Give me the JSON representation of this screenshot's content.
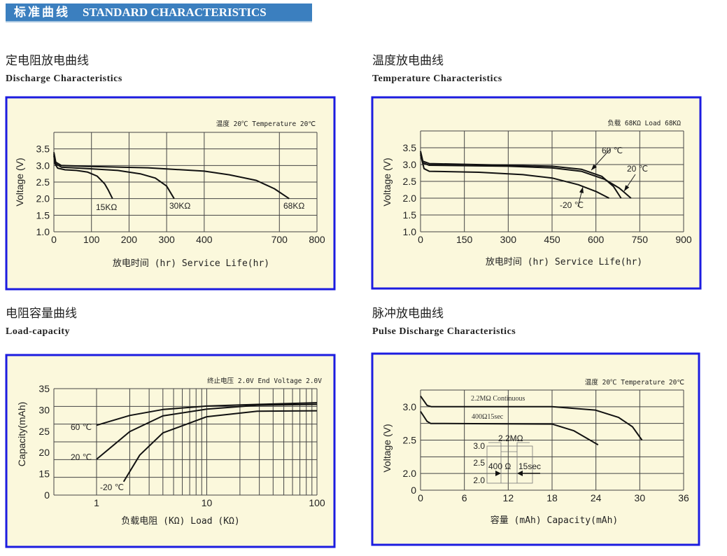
{
  "banner": {
    "cn": "标准曲线",
    "en": "STANDARD CHARACTERISTICS",
    "color": "#3b7fbf"
  },
  "sections": [
    {
      "cn": "定电阻放电曲线",
      "en": "Discharge Characteristics"
    },
    {
      "cn": "温度放电曲线",
      "en": "Temperature Characteristics"
    },
    {
      "cn": "电阻容量曲线",
      "en": "Load-capacity"
    },
    {
      "cn": "脉冲放电曲线",
      "en": "Pulse Discharge Characteristics"
    }
  ],
  "colors": {
    "panel_fill": "#fbf8dc",
    "panel_border": "#1c1ce0",
    "grid": "#444444",
    "curve": "#111111"
  },
  "chart_data": [
    {
      "type": "line",
      "note": "温度 20℃  Temperature 20℃",
      "xlabel": "放电时间 (hr) Service Life(hr)",
      "ylabel": "Voltage (V)",
      "x_ticks": [
        "0",
        "100",
        "200",
        "300",
        "400",
        "700",
        "800"
      ],
      "x_tick_values": [
        0,
        100,
        200,
        300,
        400,
        700,
        800
      ],
      "y_ticks": [
        "1.0",
        "1.5",
        "2.0",
        "2.5",
        "3.0",
        "3.5"
      ],
      "ylim": [
        1.0,
        4.0
      ],
      "grid": true,
      "series": [
        {
          "name": "15KΩ",
          "points": [
            [
              0,
              3.3
            ],
            [
              3,
              3.05
            ],
            [
              10,
              2.92
            ],
            [
              30,
              2.87
            ],
            [
              60,
              2.85
            ],
            [
              90,
              2.8
            ],
            [
              115,
              2.68
            ],
            [
              135,
              2.45
            ],
            [
              145,
              2.25
            ],
            [
              156,
              2.0
            ]
          ]
        },
        {
          "name": "30KΩ",
          "points": [
            [
              0,
              3.35
            ],
            [
              5,
              3.05
            ],
            [
              20,
              2.95
            ],
            [
              100,
              2.9
            ],
            [
              170,
              2.85
            ],
            [
              230,
              2.75
            ],
            [
              270,
              2.62
            ],
            [
              300,
              2.38
            ],
            [
              320,
              2.0
            ]
          ]
        },
        {
          "name": "68KΩ",
          "points": [
            [
              0,
              3.4
            ],
            [
              5,
              3.1
            ],
            [
              20,
              3.0
            ],
            [
              100,
              2.97
            ],
            [
              250,
              2.93
            ],
            [
              400,
              2.83
            ],
            [
              500,
              2.72
            ],
            [
              608,
              2.55
            ],
            [
              680,
              2.3
            ],
            [
              726,
              2.0
            ]
          ]
        }
      ]
    },
    {
      "type": "line",
      "note": "负载 68KΩ  Load 68KΩ",
      "xlabel": "放电时间 (hr) Service Life(hr)",
      "ylabel": "Voltage (V)",
      "x_ticks": [
        "0",
        "150",
        "300",
        "450",
        "600",
        "750",
        "900"
      ],
      "x_tick_values": [
        0,
        150,
        300,
        450,
        600,
        750,
        900
      ],
      "y_ticks": [
        "1.0",
        "1.5",
        "2.0",
        "2.5",
        "3.0",
        "3.5"
      ],
      "ylim": [
        1.0,
        4.0
      ],
      "grid": true,
      "series": [
        {
          "name": "60 ℃",
          "points": [
            [
              0,
              3.4
            ],
            [
              8,
              3.1
            ],
            [
              30,
              3.03
            ],
            [
              300,
              2.98
            ],
            [
              450,
              2.95
            ],
            [
              550,
              2.86
            ],
            [
              620,
              2.65
            ],
            [
              660,
              2.35
            ],
            [
              686,
              2.0
            ]
          ]
        },
        {
          "name": "20 ℃",
          "points": [
            [
              0,
              3.35
            ],
            [
              8,
              3.05
            ],
            [
              30,
              2.98
            ],
            [
              300,
              2.95
            ],
            [
              450,
              2.9
            ],
            [
              550,
              2.8
            ],
            [
              630,
              2.56
            ],
            [
              680,
              2.3
            ],
            [
              720,
              2.0
            ]
          ]
        },
        {
          "name": "-20 ℃",
          "points": [
            [
              0,
              3.3
            ],
            [
              12,
              2.88
            ],
            [
              30,
              2.8
            ],
            [
              200,
              2.77
            ],
            [
              350,
              2.7
            ],
            [
              450,
              2.6
            ],
            [
              540,
              2.4
            ],
            [
              600,
              2.2
            ],
            [
              645,
              2.0
            ]
          ]
        }
      ]
    },
    {
      "type": "line",
      "note": "终止电压 2.0V End Voltage 2.0V",
      "xlabel": "负载电阻 (KΩ) Load (KΩ)",
      "ylabel": "Capacity(mAh)",
      "x_scale": "log",
      "x_ticks": [
        "1",
        "10",
        "100"
      ],
      "x_tick_values": [
        1,
        10,
        100
      ],
      "y_ticks": [
        "0",
        "15",
        "20",
        "25",
        "30",
        "35"
      ],
      "y_tick_values": [
        0,
        15,
        20,
        25,
        30,
        35
      ],
      "grid": true,
      "series": [
        {
          "name": "60 ℃",
          "points": [
            [
              1,
              26.4
            ],
            [
              2,
              28.7
            ],
            [
              4,
              30.1
            ],
            [
              10,
              30.9
            ],
            [
              28.7,
              31.3
            ],
            [
              100,
              31.7
            ]
          ]
        },
        {
          "name": "20 ℃",
          "points": [
            [
              1,
              18.4
            ],
            [
              2,
              24.9
            ],
            [
              4,
              28.6
            ],
            [
              10,
              30.2
            ],
            [
              28.7,
              31.1
            ],
            [
              100,
              31.3
            ]
          ]
        },
        {
          "name": "-20 ℃",
          "points": [
            [
              1.76,
              9.4
            ],
            [
              2.47,
              19.4
            ],
            [
              4,
              24.6
            ],
            [
              10,
              28.4
            ],
            [
              28.7,
              29.7
            ],
            [
              100,
              29.8
            ]
          ]
        }
      ]
    },
    {
      "type": "line",
      "note": "温度 20℃ Temperature 20℃",
      "xlabel": "容量 (mAh) Capacity(mAh)",
      "ylabel": "Voltage (V)",
      "x_ticks": [
        "0",
        "6",
        "12",
        "18",
        "24",
        "30",
        "36"
      ],
      "x_tick_values": [
        0,
        6,
        12,
        18,
        24,
        30,
        36
      ],
      "y_ticks": [
        "0",
        "2.0",
        "2.5",
        "3.0"
      ],
      "y_tick_values": [
        0,
        2.0,
        2.5,
        3.0
      ],
      "grid": true,
      "series": [
        {
          "name": "2.2MΩ Continuous",
          "points": [
            [
              0,
              3.16
            ],
            [
              0.9,
              3.02
            ],
            [
              1.5,
              3.0
            ],
            [
              18,
              3.0
            ],
            [
              23.9,
              2.95
            ],
            [
              27.1,
              2.84
            ],
            [
              29,
              2.7
            ],
            [
              30.3,
              2.5
            ]
          ]
        },
        {
          "name": "400Ω15sec",
          "points": [
            [
              0,
              2.93
            ],
            [
              0.9,
              2.78
            ],
            [
              1.4,
              2.75
            ],
            [
              18,
              2.74
            ],
            [
              21,
              2.64
            ],
            [
              24.3,
              2.43
            ]
          ]
        }
      ],
      "inset": {
        "y_ticks": [
          "3.0",
          "2.5",
          "2.0"
        ],
        "label_high": "2.2MΩ",
        "label_load": "400 Ω",
        "label_time": "15sec"
      }
    }
  ]
}
